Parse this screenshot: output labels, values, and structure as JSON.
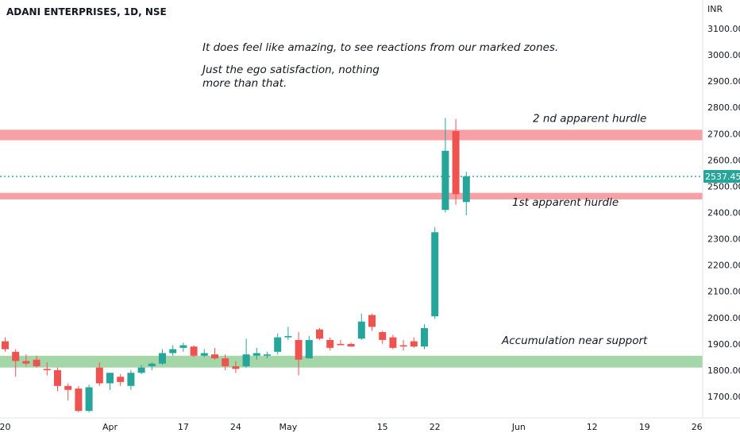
{
  "chart_data": {
    "type": "candlestick",
    "title": "ADANI ENTERPRISES, 1D, NSE",
    "currency": "INR",
    "ylim": [
      1650,
      3150
    ],
    "y_ticks": [
      1700,
      1800,
      1900,
      2000,
      2100,
      2200,
      2300,
      2400,
      2500,
      2600,
      2700,
      2800,
      2900,
      3000,
      3100
    ],
    "x_ticks": [
      {
        "label": "20",
        "bar": 0
      },
      {
        "label": "Apr",
        "bar": 10
      },
      {
        "label": "17",
        "bar": 17
      },
      {
        "label": "24",
        "bar": 22
      },
      {
        "label": "May",
        "bar": 27
      },
      {
        "label": "15",
        "bar": 36
      },
      {
        "label": "22",
        "bar": 41
      },
      {
        "label": "Jun",
        "bar": 49
      },
      {
        "label": "12",
        "bar": 56
      },
      {
        "label": "19",
        "bar": 61
      },
      {
        "label": "26",
        "bar": 66
      }
    ],
    "last_price": 2537.45,
    "last_price_label": "2537.45",
    "colors": {
      "up": "#26a69a",
      "down": "#ef5350",
      "resistance_zone": "#f7a1a6",
      "support_zone": "#a5d6a7",
      "last_price": "#26a69a"
    },
    "candles": [
      {
        "o": 1910,
        "h": 1925,
        "l": 1870,
        "c": 1880
      },
      {
        "o": 1870,
        "h": 1880,
        "l": 1775,
        "c": 1835
      },
      {
        "o": 1835,
        "h": 1860,
        "l": 1815,
        "c": 1825
      },
      {
        "o": 1840,
        "h": 1855,
        "l": 1810,
        "c": 1815
      },
      {
        "o": 1805,
        "h": 1830,
        "l": 1780,
        "c": 1800
      },
      {
        "o": 1800,
        "h": 1810,
        "l": 1720,
        "c": 1740
      },
      {
        "o": 1740,
        "h": 1750,
        "l": 1685,
        "c": 1725
      },
      {
        "o": 1730,
        "h": 1740,
        "l": 1640,
        "c": 1645
      },
      {
        "o": 1645,
        "h": 1745,
        "l": 1640,
        "c": 1735
      },
      {
        "o": 1810,
        "h": 1830,
        "l": 1740,
        "c": 1750
      },
      {
        "o": 1750,
        "h": 1790,
        "l": 1725,
        "c": 1790
      },
      {
        "o": 1775,
        "h": 1785,
        "l": 1740,
        "c": 1755
      },
      {
        "o": 1740,
        "h": 1800,
        "l": 1725,
        "c": 1790
      },
      {
        "o": 1790,
        "h": 1820,
        "l": 1785,
        "c": 1810
      },
      {
        "o": 1815,
        "h": 1830,
        "l": 1800,
        "c": 1825
      },
      {
        "o": 1825,
        "h": 1880,
        "l": 1820,
        "c": 1865
      },
      {
        "o": 1865,
        "h": 1895,
        "l": 1855,
        "c": 1880
      },
      {
        "o": 1885,
        "h": 1905,
        "l": 1870,
        "c": 1895
      },
      {
        "o": 1890,
        "h": 1895,
        "l": 1850,
        "c": 1855
      },
      {
        "o": 1855,
        "h": 1880,
        "l": 1850,
        "c": 1865
      },
      {
        "o": 1860,
        "h": 1885,
        "l": 1840,
        "c": 1845
      },
      {
        "o": 1845,
        "h": 1860,
        "l": 1800,
        "c": 1815
      },
      {
        "o": 1815,
        "h": 1835,
        "l": 1790,
        "c": 1805
      },
      {
        "o": 1815,
        "h": 1920,
        "l": 1810,
        "c": 1860
      },
      {
        "o": 1855,
        "h": 1885,
        "l": 1840,
        "c": 1865
      },
      {
        "o": 1855,
        "h": 1870,
        "l": 1845,
        "c": 1860
      },
      {
        "o": 1870,
        "h": 1940,
        "l": 1860,
        "c": 1925
      },
      {
        "o": 1925,
        "h": 1965,
        "l": 1915,
        "c": 1930
      },
      {
        "o": 1915,
        "h": 1945,
        "l": 1780,
        "c": 1840
      },
      {
        "o": 1845,
        "h": 1930,
        "l": 1845,
        "c": 1915
      },
      {
        "o": 1955,
        "h": 1960,
        "l": 1915,
        "c": 1920
      },
      {
        "o": 1915,
        "h": 1925,
        "l": 1875,
        "c": 1885
      },
      {
        "o": 1900,
        "h": 1915,
        "l": 1895,
        "c": 1895
      },
      {
        "o": 1900,
        "h": 1905,
        "l": 1890,
        "c": 1890
      },
      {
        "o": 1920,
        "h": 2015,
        "l": 1915,
        "c": 1985
      },
      {
        "o": 2010,
        "h": 2015,
        "l": 1950,
        "c": 1965
      },
      {
        "o": 1945,
        "h": 1950,
        "l": 1900,
        "c": 1915
      },
      {
        "o": 1925,
        "h": 1935,
        "l": 1880,
        "c": 1885
      },
      {
        "o": 1895,
        "h": 1915,
        "l": 1875,
        "c": 1890
      },
      {
        "o": 1910,
        "h": 1925,
        "l": 1885,
        "c": 1890
      },
      {
        "o": 1890,
        "h": 1975,
        "l": 1880,
        "c": 1960
      },
      {
        "o": 2005,
        "h": 2345,
        "l": 1995,
        "c": 2325
      },
      {
        "o": 2410,
        "h": 2760,
        "l": 2400,
        "c": 2635
      },
      {
        "o": 2710,
        "h": 2755,
        "l": 2430,
        "c": 2470
      },
      {
        "o": 2440,
        "h": 2555,
        "l": 2390,
        "c": 2537.45
      }
    ],
    "zones": [
      {
        "type": "resistance",
        "from": 2675,
        "to": 2715
      },
      {
        "type": "resistance",
        "from": 2450,
        "to": 2475
      },
      {
        "type": "support",
        "from": 1810,
        "to": 1855
      }
    ],
    "annotations": [
      {
        "text": "It does feel like amazing, to see reactions from our marked zones.",
        "x_bar": 36,
        "y": 3015
      },
      {
        "text": "Just the ego satisfaction, nothing",
        "x_bar": 36,
        "y": 2930
      },
      {
        "text": "more than that.",
        "x_bar": 36,
        "y": 2880
      },
      {
        "text": "2 nd apparent hurdle",
        "x_bar": 56,
        "y": 2745
      },
      {
        "text": "1st apparent hurdle",
        "x_bar": 54,
        "y": 2425
      },
      {
        "text": "Accumulation near support",
        "x_bar": 54,
        "y": 1900
      }
    ]
  }
}
